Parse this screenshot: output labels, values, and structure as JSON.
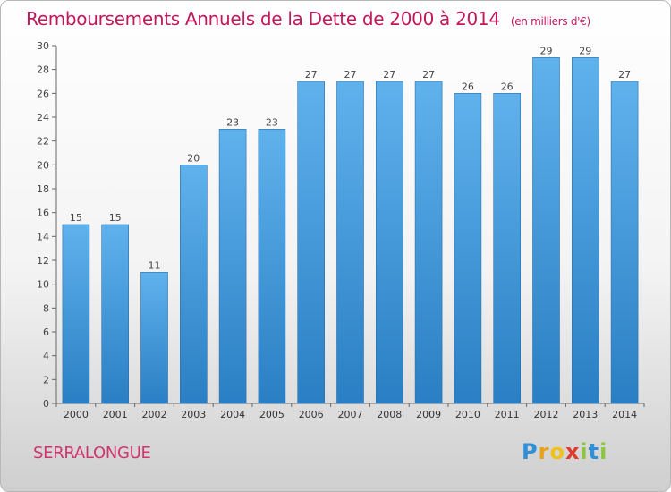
{
  "header": {
    "title": "Remboursements Annuels de la Dette de 2000 à 2014",
    "unit": "(en milliers d'€)"
  },
  "footer": {
    "city": "SERRALONGUE",
    "logo_parts": [
      "P",
      "r",
      "o",
      "x",
      "i",
      "t",
      "i"
    ]
  },
  "colors": {
    "title": "#c2185b",
    "bar_light": "#5fb2ec",
    "bar_dark": "#2a7fc4"
  },
  "chart_data": {
    "type": "bar",
    "title": "Remboursements Annuels de la Dette de 2000 à 2014",
    "xlabel": "",
    "ylabel": "(en milliers d'€)",
    "categories": [
      "2000",
      "2001",
      "2002",
      "2003",
      "2004",
      "2005",
      "2006",
      "2007",
      "2008",
      "2009",
      "2010",
      "2011",
      "2012",
      "2013",
      "2014"
    ],
    "values": [
      15,
      15,
      11,
      20,
      23,
      23,
      27,
      27,
      27,
      27,
      26,
      26,
      29,
      29,
      27
    ],
    "ylim": [
      0,
      30
    ],
    "yticks": [
      0,
      2,
      4,
      6,
      8,
      10,
      12,
      14,
      16,
      18,
      20,
      22,
      24,
      26,
      28,
      30
    ],
    "grid": false,
    "data_labels": true
  }
}
